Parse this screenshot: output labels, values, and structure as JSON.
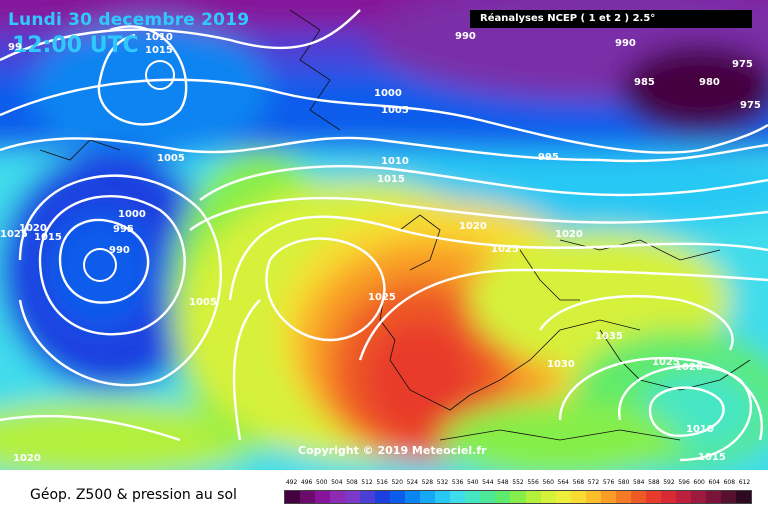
{
  "header": {
    "date": "Lundi 30 decembre 2019",
    "time": "12:00 UTC"
  },
  "source_box": "Réanalyses NCEP ( 1 et 2 ) 2.5°",
  "copyright": "Copyright © 2019 Meteociel.fr",
  "caption": "Géop. Z500 & pression au sol",
  "isobar_labels": [
    {
      "text": "99"
    },
    {
      "text": "1010"
    },
    {
      "text": "1015"
    },
    {
      "text": "990"
    },
    {
      "text": "990"
    },
    {
      "text": "975"
    },
    {
      "text": "985"
    },
    {
      "text": "980"
    },
    {
      "text": "975"
    },
    {
      "text": "1000"
    },
    {
      "text": "1005"
    },
    {
      "text": "1005"
    },
    {
      "text": "995"
    },
    {
      "text": "1010"
    },
    {
      "text": "1015"
    },
    {
      "text": "1000"
    },
    {
      "text": "995"
    },
    {
      "text": "990"
    },
    {
      "text": "1020"
    },
    {
      "text": "1025"
    },
    {
      "text": "1015"
    },
    {
      "text": "1020"
    },
    {
      "text": "1025"
    },
    {
      "text": "1020"
    },
    {
      "text": "1005"
    },
    {
      "text": "1025"
    },
    {
      "text": "1035"
    },
    {
      "text": "1030"
    },
    {
      "text": "1025"
    },
    {
      "text": "1020"
    },
    {
      "text": "1010"
    },
    {
      "text": "1015"
    },
    {
      "text": "1020"
    }
  ],
  "legend": {
    "values": [
      "492",
      "496",
      "500",
      "504",
      "508",
      "512",
      "516",
      "520",
      "524",
      "528",
      "532",
      "536",
      "540",
      "544",
      "548",
      "552",
      "556",
      "560",
      "564",
      "568",
      "572",
      "576",
      "580",
      "584",
      "588",
      "592",
      "596",
      "600",
      "604",
      "608",
      "612"
    ],
    "colors": [
      "#45003f",
      "#6b0b6c",
      "#86139a",
      "#8d2bb4",
      "#7c38c9",
      "#4c3fd6",
      "#1e3fe0",
      "#0c5ceb",
      "#0a84f1",
      "#16a8f5",
      "#27c8f4",
      "#40dcec",
      "#46e6c4",
      "#4ce89a",
      "#5eea6c",
      "#86ee4a",
      "#b2f03c",
      "#d6f13a",
      "#eeef3a",
      "#f8dc32",
      "#fbbf2c",
      "#f99d27",
      "#f47b24",
      "#ee5a25",
      "#e83b2b",
      "#d82a33",
      "#bd1f3c",
      "#9c1a3e",
      "#7a143a",
      "#561030",
      "#2d0a22"
    ]
  }
}
